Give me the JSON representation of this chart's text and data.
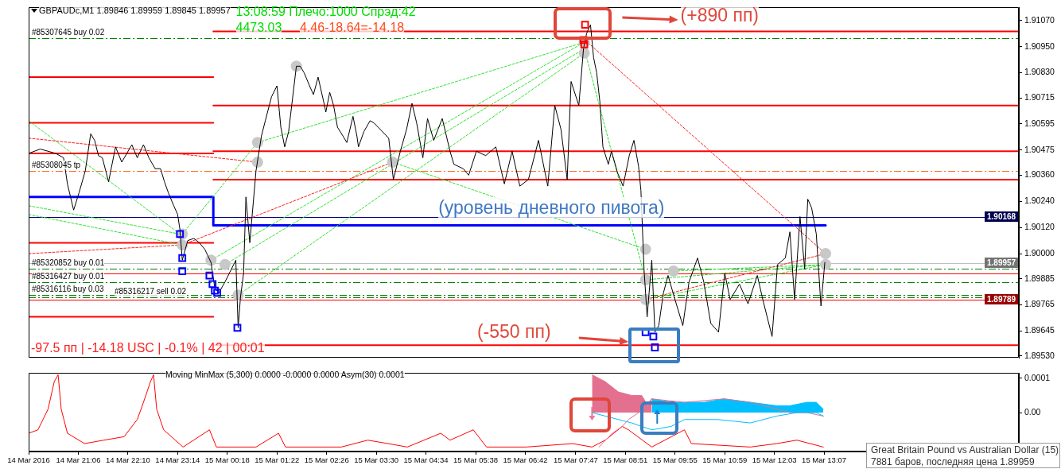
{
  "chart_data": [
    {
      "type": "line",
      "title": "GBPAUDc,M1 1.89846 1.89959 1.89845 1.89957",
      "annotations": [
        "13:08:59 Плечо:1000 Спрэд:42",
        "4473.03",
        "4.46-18.64=-14.18",
        "(+890 пп)",
        "(уровень дневного пивота)",
        "(-550 пп)",
        "-97.5 пп | -14.18 USC | -0.1% | 42 | 00:01"
      ],
      "xlim": [
        "2016-03-14T20:02",
        "2016-03-15T17:18"
      ],
      "ylim": [
        1.8952,
        1.9113
      ],
      "yticks": [
        {
          "value": 1.9107,
          "label": "1.91070"
        },
        {
          "value": 1.9095,
          "label": "1.90950"
        },
        {
          "value": 1.9083,
          "label": "1.90830"
        },
        1.90715,
        1.90595,
        1.90475,
        {
          "value": 1.9036,
          "label": "1.90360"
        },
        {
          "value": 1.9024,
          "label": "1.90240"
        },
        {
          "value": 1.9012,
          "label": "1.90120"
        },
        {
          "value": 1.9,
          "label": "1.90000"
        },
        1.89885,
        1.89765,
        1.89645,
        {
          "value": 1.8953,
          "label": "1.89530"
        }
      ],
      "tick_labels": "y",
      "ref_lines": [
        {
          "axis": "y",
          "value": 1.9099,
          "label": "#85307645 buy 0.02",
          "color": "#008000",
          "line_style": "dashed"
        },
        {
          "axis": "y",
          "value": 1.9038,
          "label": "#85308045 tp",
          "color": "#ff6a20",
          "line_style": "dashed"
        },
        {
          "axis": "y",
          "value": 1.90168,
          "label": "1.90168",
          "color": "#000080"
        },
        {
          "axis": "y",
          "value": 1.89957,
          "label": "1.89957",
          "color": "#c0c0c0"
        },
        {
          "axis": "y",
          "value": 1.8993,
          "label": "#85320852 buy 0.01",
          "color": "#008000",
          "line_style": "dashed"
        },
        {
          "axis": "y",
          "value": 1.8991,
          "color": "#ff0000"
        },
        {
          "axis": "y",
          "value": 1.8987,
          "label": "#85316427 buy 0.01",
          "color": "#008000",
          "line_style": "dashed"
        },
        {
          "axis": "y",
          "value": 1.8981,
          "label": "#85316116 buy 0.03",
          "color": "#008000",
          "line_style": "dashed"
        },
        {
          "axis": "y",
          "value": 1.898,
          "label": "#85316217 sell 0.02",
          "color": "#008000",
          "line_style": "dashed"
        },
        {
          "axis": "y",
          "value": 1.89789,
          "label": "1.89789",
          "color": "#ff0000"
        }
      ],
      "series": [
        {
          "type": "line",
          "color": "#ff0000",
          "x": [
            "2016-03-14T20:02",
            "2016-03-15T00:00"
          ],
          "values": [
            1.9081,
            1.9081
          ]
        },
        {
          "type": "line",
          "color": "#ff0000",
          "x": [
            "2016-03-14T20:02",
            "2016-03-15T00:00"
          ],
          "values": [
            1.906,
            1.906
          ]
        },
        {
          "type": "line",
          "color": "#ff0000",
          "x": [
            "2016-03-14T20:02",
            "2016-03-15T00:00"
          ],
          "values": [
            1.9046,
            1.9046
          ]
        },
        {
          "type": "line",
          "color": "#ff0000",
          "x": [
            "2016-03-14T20:02",
            "2016-03-15T00:00"
          ],
          "values": [
            1.9005,
            1.9005
          ]
        },
        {
          "type": "line",
          "color": "#ff0000",
          "x": [
            "2016-03-14T20:02",
            "2016-03-15T00:00"
          ],
          "values": [
            1.8971,
            1.8971
          ]
        },
        {
          "type": "line",
          "color": "#ff0000",
          "x": [
            "2016-03-15T00:00",
            "2016-03-15T17:18"
          ],
          "values": [
            1.9102,
            1.9102
          ]
        },
        {
          "type": "line",
          "color": "#ff0000",
          "x": [
            "2016-03-15T00:00",
            "2016-03-15T17:18"
          ],
          "values": [
            1.9068,
            1.9068
          ]
        },
        {
          "type": "line",
          "color": "#ff0000",
          "x": [
            "2016-03-15T00:00",
            "2016-03-15T17:18"
          ],
          "values": [
            1.9047,
            1.9047
          ]
        },
        {
          "type": "line",
          "color": "#ff0000",
          "x": [
            "2016-03-15T00:00",
            "2016-03-15T17:18"
          ],
          "values": [
            1.9034,
            1.9034
          ]
        },
        {
          "type": "line",
          "color": "#ff0000",
          "x": [
            "2016-03-15T00:00",
            "2016-03-15T17:18"
          ],
          "values": [
            1.8958,
            1.8958
          ]
        },
        {
          "type": "step",
          "color": "#0000ff",
          "x": [
            "2016-03-14T20:02",
            "2016-03-15T00:00",
            "2016-03-15T13:09"
          ],
          "values": [
            1.9026,
            1.9013,
            1.9013
          ]
        },
        {
          "type": "line",
          "color": "#33e033",
          "line_style": "dashed",
          "x": [
            "2016-03-14T20:02",
            "2016-03-14T23:17"
          ],
          "values": [
            1.9022,
            1.9009
          ]
        },
        {
          "type": "line",
          "color": "#33e033",
          "line_style": "dashed",
          "x": [
            "2016-03-14T20:02",
            "2016-03-14T23:20"
          ],
          "values": [
            1.9018,
            1.9004
          ]
        },
        {
          "type": "line",
          "color": "#33e033",
          "line_style": "dashed",
          "x": [
            "2016-03-14T20:02",
            "2016-03-14T23:17"
          ],
          "values": [
            1.9061,
            1.9009
          ]
        },
        {
          "type": "line",
          "color": "#33e033",
          "line_style": "dashed",
          "x": [
            "2016-03-14T23:20",
            "2016-03-15T00:57"
          ],
          "values": [
            1.9009,
            1.9051
          ]
        },
        {
          "type": "line",
          "color": "#33e033",
          "line_style": "dashed",
          "x": [
            "2016-03-14T23:57",
            "2016-03-15T07:58"
          ],
          "values": [
            1.8997,
            1.9097
          ]
        },
        {
          "type": "line",
          "color": "#33e033",
          "line_style": "dashed",
          "x": [
            "2016-03-15T00:15",
            "2016-03-15T07:58"
          ],
          "values": [
            1.8995,
            1.9094
          ]
        },
        {
          "type": "line",
          "color": "#33e033",
          "line_style": "dashed",
          "x": [
            "2016-03-15T00:32",
            "2016-03-15T07:58"
          ],
          "values": [
            1.8981,
            1.9092
          ]
        },
        {
          "type": "line",
          "color": "#33e033",
          "line_style": "dashed",
          "x": [
            "2016-03-15T00:57",
            "2016-03-15T07:58"
          ],
          "values": [
            1.9051,
            1.9097
          ]
        },
        {
          "type": "line",
          "color": "#33e033",
          "line_style": "dashed",
          "x": [
            "2016-03-15T03:51",
            "2016-03-15T09:17"
          ],
          "values": [
            1.9042,
            1.9002
          ]
        },
        {
          "type": "line",
          "color": "#33e033",
          "line_style": "dashed",
          "x": [
            "2016-03-15T07:58",
            "2016-03-15T09:17"
          ],
          "values": [
            1.9094,
            1.8988
          ]
        },
        {
          "type": "line",
          "color": "#33e033",
          "line_style": "dashed",
          "x": [
            "2016-03-15T09:17",
            "2016-03-15T13:09"
          ],
          "values": [
            1.8979,
            1.8995
          ]
        },
        {
          "type": "line",
          "color": "#33e033",
          "line_style": "dashed",
          "x": [
            "2016-03-15T09:53",
            "2016-03-15T13:09"
          ],
          "values": [
            1.8992,
            1.8995
          ]
        },
        {
          "type": "line",
          "color": "#33e033",
          "line_style": "dashed",
          "x": [
            "2016-03-15T09:17",
            "2016-03-15T13:09"
          ],
          "values": [
            1.8988,
            1.8995
          ]
        },
        {
          "type": "line",
          "color": "#ff2020",
          "line_style": "dashed",
          "x": [
            "2016-03-14T20:02",
            "2016-03-15T00:57"
          ],
          "values": [
            1.9053,
            1.9042
          ]
        },
        {
          "type": "line",
          "color": "#ff2020",
          "line_style": "dashed",
          "x": [
            "2016-03-14T20:02",
            "2016-03-14T23:20"
          ],
          "values": [
            1.9,
            1.9004
          ]
        },
        {
          "type": "line",
          "color": "#ff2020",
          "line_style": "dashed",
          "x": [
            "2016-03-14T23:20",
            "2016-03-15T03:51"
          ],
          "values": [
            1.9004,
            1.9042
          ]
        },
        {
          "type": "line",
          "color": "#ff2020",
          "line_style": "dashed",
          "x": [
            "2016-03-15T07:59",
            "2016-03-15T13:09"
          ],
          "values": [
            1.9098,
            1.9
          ]
        },
        {
          "type": "line",
          "color": "#ff2020",
          "line_style": "dashed",
          "x": [
            "2016-03-15T09:17",
            "2016-03-15T13:09"
          ],
          "values": [
            1.8979,
            1.9
          ]
        },
        {
          "type": "scatter",
          "marker": "circle",
          "color": "#c8c8c8",
          "x": [
            "2016-03-14T23:20",
            "2016-03-14T23:20",
            "2016-03-14T23:57",
            "2016-03-15T00:15",
            "2016-03-15T00:32",
            "2016-03-15T00:57",
            "2016-03-15T00:57",
            "2016-03-15T01:47",
            "2016-03-15T03:51",
            "2016-03-15T07:58",
            "2016-03-15T07:58",
            "2016-03-15T09:17",
            "2016-03-15T09:17",
            "2016-03-15T09:17",
            "2016-03-15T09:53",
            "2016-03-15T13:09",
            "2016-03-15T13:09"
          ],
          "values": [
            1.9009,
            1.9004,
            1.8997,
            1.8995,
            1.8981,
            1.9051,
            1.9042,
            1.9086,
            1.9042,
            1.9097,
            1.9092,
            1.9002,
            1.8988,
            1.8979,
            1.8992,
            1.9,
            1.8995
          ]
        },
        {
          "color": "#000000",
          "x": [
            "2016-03-14T20:02",
            "2016-03-14T20:17",
            "2016-03-14T20:37",
            "2016-03-14T20:47",
            "2016-03-14T20:52",
            "2016-03-14T21:00",
            "2016-03-14T21:07",
            "2016-03-14T21:15",
            "2016-03-14T21:22",
            "2016-03-14T21:27",
            "2016-03-14T21:32",
            "2016-03-14T21:37",
            "2016-03-14T21:45",
            "2016-03-14T21:54",
            "2016-03-14T22:02",
            "2016-03-14T22:15",
            "2016-03-14T22:22",
            "2016-03-14T22:30",
            "2016-03-14T22:37",
            "2016-03-14T22:45",
            "2016-03-14T22:52",
            "2016-03-14T22:57",
            "2016-03-14T23:02",
            "2016-03-14T23:09",
            "2016-03-14T23:14",
            "2016-03-14T23:17",
            "2016-03-14T23:20",
            "2016-03-14T23:27",
            "2016-03-14T23:35",
            "2016-03-14T23:42",
            "2016-03-14T23:49",
            "2016-03-14T23:57",
            "2016-03-15T00:02",
            "2016-03-15T00:07",
            "2016-03-15T00:15",
            "2016-03-15T00:22",
            "2016-03-15T00:29",
            "2016-03-15T00:32",
            "2016-03-15T00:35",
            "2016-03-15T00:39",
            "2016-03-15T00:42",
            "2016-03-15T00:47",
            "2016-03-15T00:55",
            "2016-03-15T01:02",
            "2016-03-15T01:07",
            "2016-03-15T01:15",
            "2016-03-15T01:22",
            "2016-03-15T01:27",
            "2016-03-15T01:32",
            "2016-03-15T01:37",
            "2016-03-15T01:47",
            "2016-03-15T01:52",
            "2016-03-15T01:57",
            "2016-03-15T02:04",
            "2016-03-15T02:09",
            "2016-03-15T02:15",
            "2016-03-15T02:22",
            "2016-03-15T02:25",
            "2016-03-15T02:30",
            "2016-03-15T02:35",
            "2016-03-15T02:40",
            "2016-03-15T02:47",
            "2016-03-15T02:52",
            "2016-03-15T03:00",
            "2016-03-15T03:05",
            "2016-03-15T03:07",
            "2016-03-15T03:14",
            "2016-03-15T03:22",
            "2016-03-15T03:27",
            "2016-03-15T03:46",
            "2016-03-15T03:52",
            "2016-03-15T04:01",
            "2016-03-15T04:09",
            "2016-03-15T04:16",
            "2016-03-15T04:22",
            "2016-03-15T04:30",
            "2016-03-15T04:36",
            "2016-03-15T04:44",
            "2016-03-15T04:55",
            "2016-03-15T05:05",
            "2016-03-15T05:10",
            "2016-03-15T05:22",
            "2016-03-15T05:29",
            "2016-03-15T05:39",
            "2016-03-15T05:51",
            "2016-03-15T06:04",
            "2016-03-15T06:15",
            "2016-03-15T06:25",
            "2016-03-15T06:35",
            "2016-03-15T06:46",
            "2016-03-15T06:59",
            "2016-03-15T07:11",
            "2016-03-15T07:20",
            "2016-03-15T07:28",
            "2016-03-15T07:36",
            "2016-03-15T07:41",
            "2016-03-15T07:51",
            "2016-03-15T07:57",
            "2016-03-15T08:01",
            "2016-03-15T08:06",
            "2016-03-15T08:10",
            "2016-03-15T08:14",
            "2016-03-15T08:18",
            "2016-03-15T08:22",
            "2016-03-15T08:29",
            "2016-03-15T08:33",
            "2016-03-15T08:41",
            "2016-03-15T08:48",
            "2016-03-15T08:56",
            "2016-03-15T09:02",
            "2016-03-15T09:08",
            "2016-03-15T09:11",
            "2016-03-15T09:13",
            "2016-03-15T09:15",
            "2016-03-15T09:19",
            "2016-03-15T09:25",
            "2016-03-15T09:29",
            "2016-03-15T09:34",
            "2016-03-15T09:40",
            "2016-03-15T09:46",
            "2016-03-15T09:54",
            "2016-03-15T10:05",
            "2016-03-15T10:13",
            "2016-03-15T10:24",
            "2016-03-15T10:32",
            "2016-03-15T10:41",
            "2016-03-15T10:51",
            "2016-03-15T10:59",
            "2016-03-15T11:06",
            "2016-03-15T11:18",
            "2016-03-15T11:29",
            "2016-03-15T11:41",
            "2016-03-15T11:48",
            "2016-03-15T12:00",
            "2016-03-15T12:07",
            "2016-03-15T12:17",
            "2016-03-15T12:23",
            "2016-03-15T12:29",
            "2016-03-15T12:36",
            "2016-03-15T12:42",
            "2016-03-15T12:46",
            "2016-03-15T12:51",
            "2016-03-15T12:57",
            "2016-03-15T13:03",
            "2016-03-15T13:08"
          ],
          "values": [
            1.9046,
            1.9048,
            1.9046,
            1.9044,
            1.9032,
            1.902,
            1.9028,
            1.9038,
            1.9055,
            1.9052,
            1.9045,
            1.9044,
            1.9033,
            1.9049,
            1.9042,
            1.905,
            1.9044,
            1.905,
            1.9044,
            1.9039,
            1.9039,
            1.9033,
            1.9028,
            1.9022,
            1.9018,
            1.9011,
            1.8997,
            1.9006,
            1.9007,
            1.9005,
            1.9002,
            1.8996,
            1.8984,
            1.8982,
            1.8987,
            1.8992,
            1.8997,
            1.8966,
            1.898,
            1.8991,
            1.9026,
            1.9005,
            1.9038,
            1.9054,
            1.9061,
            1.9072,
            1.9077,
            1.9058,
            1.9049,
            1.9056,
            1.9086,
            1.9086,
            1.9083,
            1.9077,
            1.9073,
            1.9081,
            1.907,
            1.9065,
            1.9074,
            1.9068,
            1.9058,
            1.9054,
            1.9051,
            1.9063,
            1.9054,
            1.9049,
            1.9056,
            1.9061,
            1.906,
            1.9053,
            1.9034,
            1.9047,
            1.9057,
            1.9069,
            1.906,
            1.9044,
            1.9062,
            1.9052,
            1.9062,
            1.9047,
            1.9041,
            1.9039,
            1.9036,
            1.9047,
            1.9045,
            1.9049,
            1.9032,
            1.9047,
            1.9031,
            1.9034,
            1.9052,
            1.9031,
            1.9068,
            1.9057,
            1.9034,
            1.9079,
            1.9068,
            1.9094,
            1.9101,
            1.9105,
            1.909,
            1.9083,
            1.907,
            1.9049,
            1.9041,
            1.9047,
            1.9037,
            1.9031,
            1.9045,
            1.9052,
            1.904,
            1.9029,
            1.9011,
            1.8993,
            1.8971,
            1.8997,
            1.8964,
            1.8967,
            1.8982,
            1.899,
            1.898,
            1.8967,
            1.8987,
            1.8998,
            1.8987,
            1.8968,
            1.8964,
            1.8991,
            1.8979,
            1.8986,
            1.8977,
            1.899,
            1.8979,
            1.8962,
            1.8995,
            1.8998,
            1.901,
            1.8979,
            1.9017,
            1.8993,
            1.9025,
            1.9021,
            1.9009,
            1.8976,
            1.8996
          ]
        },
        {
          "type": "scatter",
          "marker": "square",
          "color": "#0000ff",
          "x": [
            "2016-03-14T23:17",
            "2016-03-14T23:20",
            "2016-03-14T23:20",
            "2016-03-14T23:55",
            "2016-03-14T23:59",
            "2016-03-15T00:02",
            "2016-03-15T00:05",
            "2016-03-15T00:31",
            "2016-03-15T09:17",
            "2016-03-15T09:27",
            "2016-03-15T09:29"
          ],
          "values": [
            1.9009,
            1.8998,
            1.8992,
            1.899,
            1.8986,
            1.8983,
            1.8982,
            1.8966,
            1.8964,
            1.8962,
            1.8957
          ]
        },
        {
          "type": "scatter",
          "marker": "square",
          "color": "#ff0000",
          "x": [
            "2016-03-15T07:59",
            "2016-03-15T07:57",
            "2016-03-15T07:58"
          ],
          "values": [
            1.9105,
            1.9098,
            1.9096
          ]
        }
      ]
    },
    {
      "type": "line",
      "title": "Moving MinMax (5,300) 0.0000 -0.0000 0.0000 Asym(30) 0.0001",
      "annotations": [
        "Great Britain Pound vs Australian Dollar (15)",
        "7881 баров, последняя цена 1.89959"
      ],
      "xlim": [
        "2016-03-14T20:02",
        "2016-03-15T17:18"
      ],
      "xticks": [
        {
          "value": "2016-03-14T20:02",
          "label": "14 Mar 2016"
        },
        {
          "value": "2016-03-14T21:06",
          "label": "14 Mar 21:06"
        },
        {
          "value": "2016-03-14T22:10",
          "label": "14 Mar 22:10"
        },
        {
          "value": "2016-03-14T23:14",
          "label": "14 Mar 23:14"
        },
        {
          "value": "2016-03-15T00:18",
          "label": "15 Mar 00:18"
        },
        {
          "value": "2016-03-15T01:22",
          "label": "15 Mar 01:22"
        },
        {
          "value": "2016-03-15T02:26",
          "label": "15 Mar 02:26"
        },
        {
          "value": "2016-03-15T03:30",
          "label": "15 Mar 03:30"
        },
        {
          "value": "2016-03-15T04:34",
          "label": "15 Mar 04:34"
        },
        {
          "value": "2016-03-15T05:38",
          "label": "15 Mar 05:38"
        },
        {
          "value": "2016-03-15T06:42",
          "label": "15 Mar 06:42"
        },
        {
          "value": "2016-03-15T07:47",
          "label": "15 Mar 07:47"
        },
        {
          "value": "2016-03-15T08:51",
          "label": "15 Mar 08:51"
        },
        {
          "value": "2016-03-15T09:55",
          "label": "15 Mar 09:55"
        },
        {
          "value": "2016-03-15T10:59",
          "label": "15 Mar 10:59"
        },
        {
          "value": "2016-03-15T12:03",
          "label": "15 Mar 12:03"
        },
        {
          "value": "2016-03-15T13:07",
          "label": "15 Mar 13:07"
        }
      ],
      "ylim": [
        -0.000113,
        0.000115
      ],
      "yticks": [
        0.0001,
        {
          "value": 0,
          "label": "0.00"
        }
      ],
      "series": [
        {
          "type": "area",
          "color": "#e3708f",
          "x": [
            "2016-03-15T08:08",
            "2016-03-15T08:25",
            "2016-03-15T08:42",
            "2016-03-15T08:59",
            "2016-03-15T09:12",
            "2016-03-15T09:20",
            "2016-03-15T09:25"
          ],
          "values": [
            0.00011,
            9e-05,
            6e-05,
            5e-05,
            5e-05,
            2e-05,
            4e-05
          ]
        },
        {
          "type": "area",
          "color": "#00bfff",
          "x": [
            "2016-03-15T09:25",
            "2016-03-15T09:50",
            "2016-03-15T10:07",
            "2016-03-15T10:33",
            "2016-03-15T10:58",
            "2016-03-15T11:32",
            "2016-03-15T12:06",
            "2016-03-15T12:23",
            "2016-03-15T12:45",
            "2016-03-15T12:57",
            "2016-03-15T13:06"
          ],
          "values": [
            4e-05,
            3e-05,
            3e-05,
            3e-05,
            4e-05,
            3e-05,
            2e-05,
            2e-05,
            3e-05,
            3e-05,
            1e-05
          ]
        },
        {
          "color": "#ff0000",
          "x": [
            "2016-03-14T20:02",
            "2016-03-14T20:14",
            "2016-03-14T20:27",
            "2016-03-14T20:35",
            "2016-03-14T20:40",
            "2016-03-14T20:44",
            "2016-03-14T20:52",
            "2016-03-14T21:14",
            "2016-03-14T21:39",
            "2016-03-14T22:05",
            "2016-03-14T22:22",
            "2016-03-14T22:30",
            "2016-03-14T22:39",
            "2016-03-14T22:43",
            "2016-03-14T22:47",
            "2016-03-14T22:56",
            "2016-03-14T23:21",
            "2016-03-14T23:55",
            "2016-03-15T00:04",
            "2016-03-15T00:55",
            "2016-03-15T01:24",
            "2016-03-15T01:33",
            "2016-03-15T02:45",
            "2016-03-15T03:19",
            "2016-03-15T03:45",
            "2016-03-15T04:10",
            "2016-03-15T04:53",
            "2016-03-15T05:05",
            "2016-03-15T05:35",
            "2016-03-15T05:52",
            "2016-03-15T06:43",
            "2016-03-15T07:43",
            "2016-03-15T08:08",
            "2016-03-15T08:25",
            "2016-03-15T08:47",
            "2016-03-15T08:55",
            "2016-03-15T09:25",
            "2016-03-15T10:07",
            "2016-03-15T10:16",
            "2016-03-15T11:32",
            "2016-03-15T12:06",
            "2016-03-15T12:32",
            "2016-03-15T13:06"
          ],
          "values": [
            -6e-05,
            -5e-05,
            1e-05,
            9e-05,
            0.00011,
            1e-05,
            -6e-05,
            -9e-05,
            -8e-05,
            -7e-05,
            -2e-05,
            3e-05,
            9e-05,
            0.00011,
            1e-05,
            -5e-05,
            -0.0001,
            -5e-05,
            -0.0001,
            -0.0001,
            -6e-05,
            -0.0001,
            -0.0001,
            -8e-05,
            -9e-05,
            -0.0001,
            -6e-05,
            -8e-05,
            -5e-05,
            -0.0001,
            -0.0001,
            -9e-05,
            -0.0001,
            -8e-05,
            -4e-05,
            -5e-05,
            -0.0001,
            -5e-05,
            -9e-05,
            -0.0001,
            -9e-05,
            -8e-05,
            -0.0001
          ]
        },
        {
          "type": "line",
          "color": "#e3708f",
          "x": [
            "2016-03-15T08:17",
            "2016-03-15T08:34",
            "2016-03-15T08:47",
            "2016-03-15T08:55",
            "2016-03-15T09:08",
            "2016-03-15T09:25",
            "2016-03-15T10:07",
            "2016-03-15T10:58",
            "2016-03-15T11:32",
            "2016-03-15T12:06",
            "2016-03-15T12:23",
            "2016-03-15T12:45",
            "2016-03-15T13:06"
          ],
          "values": [
            -0.0001,
            -6e-05,
            -4e-05,
            -2e-05,
            0,
            4e-05,
            3e-05,
            4e-05,
            3e-05,
            1e-05,
            0,
            0,
            -1e-05
          ]
        },
        {
          "type": "line",
          "color": "#00bfff",
          "x": [
            "2016-03-15T08:08",
            "2016-03-15T08:25",
            "2016-03-15T08:42",
            "2016-03-15T08:59",
            "2016-03-15T09:25",
            "2016-03-15T09:50",
            "2016-03-15T10:07",
            "2016-03-15T10:50",
            "2016-03-15T11:32",
            "2016-03-15T12:06",
            "2016-03-15T12:32",
            "2016-03-15T12:57",
            "2016-03-15T13:06"
          ],
          "values": [
            0,
            -1e-05,
            -2e-05,
            -3e-05,
            -5e-05,
            -4e-05,
            -2e-05,
            -2e-05,
            -3e-05,
            -1e-05,
            0,
            0,
            -1e-05
          ]
        }
      ]
    }
  ]
}
